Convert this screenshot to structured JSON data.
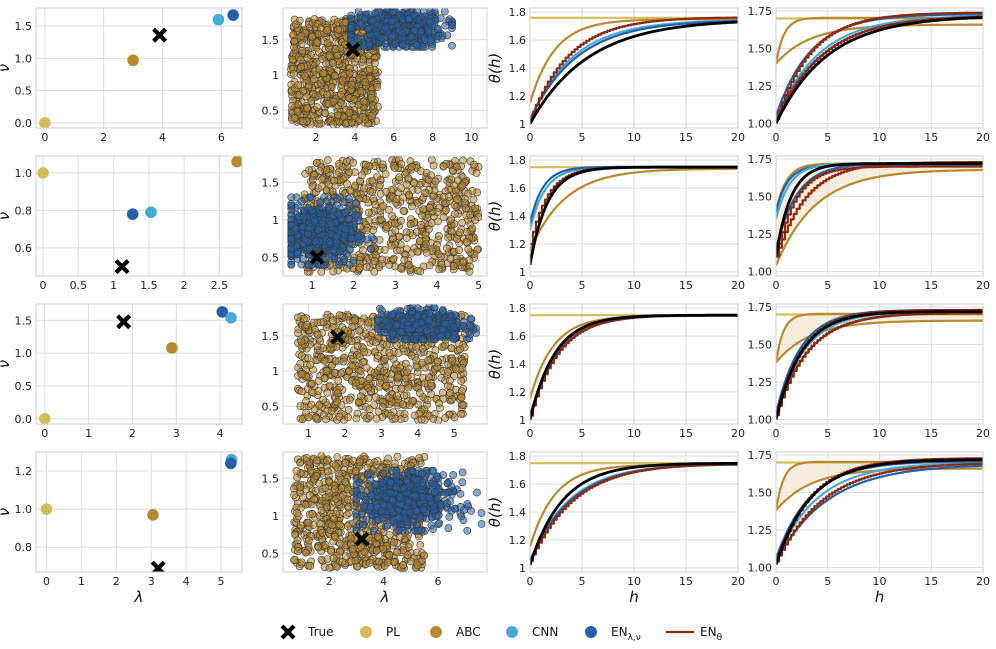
{
  "figure_labels": {
    "nu_label": "ν",
    "lambda_label": "λ",
    "theta_label": "θ(h)",
    "h_label": "h"
  },
  "legend": [
    {
      "key": "true",
      "label": "True",
      "marker": "x-icon",
      "color": "#000000"
    },
    {
      "key": "pl",
      "label": "PL",
      "marker": "circle-icon",
      "color": "#d4bc5c"
    },
    {
      "key": "abc",
      "label": "ABC",
      "marker": "circle-icon",
      "color": "#b8892e"
    },
    {
      "key": "cnn",
      "label": "CNN",
      "marker": "circle-icon",
      "color": "#45aad6"
    },
    {
      "key": "en_lam_nu",
      "label": "EN_{λ,ν}",
      "marker": "circle-icon",
      "color": "#2260a8"
    },
    {
      "key": "en_theta",
      "label": "EN_θ",
      "marker": "line-icon",
      "color": "#8b2a0e"
    }
  ],
  "colors": {
    "true": "#000000",
    "pl": "#d4bc5c",
    "abc": "#b8892e",
    "cnn": "#45aad6",
    "en_lam_nu": "#2260a8",
    "en_theta": "#8b2a0e",
    "band": "#f3e9d6"
  },
  "chart_data": [
    {
      "type": "scatter",
      "row": 1,
      "col": 1,
      "xlim": [
        -0.3,
        6.7
      ],
      "ylim": [
        -0.08,
        1.78
      ],
      "xticks": [
        0,
        2,
        4,
        6
      ],
      "yticks": [
        0.0,
        0.5,
        1.0,
        1.5
      ],
      "ylabel": "ν",
      "points": [
        {
          "series": "pl",
          "x": 0.0,
          "y": 0.0
        },
        {
          "series": "abc",
          "x": 3.0,
          "y": 0.97
        },
        {
          "series": "true",
          "x": 3.9,
          "y": 1.36
        },
        {
          "series": "cnn",
          "x": 5.9,
          "y": 1.6
        },
        {
          "series": "en_lam_nu",
          "x": 6.4,
          "y": 1.67
        }
      ]
    },
    {
      "type": "scatter",
      "row": 1,
      "col": 2,
      "xlim": [
        0.3,
        10.8
      ],
      "ylim": [
        0.25,
        1.95
      ],
      "xticks": [
        2,
        4,
        6,
        8,
        10
      ],
      "yticks": [
        0.5,
        1.0,
        1.5
      ],
      "clouds": [
        {
          "series": "abc",
          "x": [
            0.7,
            5.2
          ],
          "y": [
            0.3,
            1.8
          ],
          "n": 700
        },
        {
          "series": "en_lam_nu",
          "x": [
            3.8,
            9.0
          ],
          "y": [
            1.4,
            1.9
          ],
          "n": 520,
          "mode": "gauss",
          "cx": 6.2,
          "cy": 1.65,
          "sx": 1.2,
          "sy": 0.14
        }
      ],
      "true_point": {
        "x": 3.9,
        "y": 1.36
      }
    },
    {
      "type": "line",
      "row": 1,
      "col": 3,
      "xlim": [
        0,
        20
      ],
      "ylim": [
        0.97,
        1.83
      ],
      "xticks": [
        0,
        5,
        10,
        15,
        20
      ],
      "yticks": [
        1.0,
        1.2,
        1.4,
        1.6,
        1.8
      ],
      "ylabel": "θ(h)",
      "series": [
        {
          "name": "pl",
          "y0": 1.76,
          "yinf": 1.76,
          "k": 1
        },
        {
          "name": "abc",
          "y0": 1.15,
          "yinf": 1.75,
          "k": 0.42
        },
        {
          "name": "cnn",
          "y0": 1.03,
          "yinf": 1.745,
          "k": 0.24
        },
        {
          "name": "en_lam_nu",
          "y0": 1.03,
          "yinf": 1.745,
          "k": 0.22
        },
        {
          "name": "en_theta",
          "y0": 1.03,
          "yinf": 1.765,
          "k": 0.27,
          "step": true
        },
        {
          "name": "true",
          "y0": 1.0,
          "yinf": 1.75,
          "k": 0.18,
          "width": 2.8
        }
      ]
    },
    {
      "type": "line",
      "row": 1,
      "col": 4,
      "xlim": [
        0,
        20
      ],
      "ylim": [
        0.97,
        1.77
      ],
      "xticks": [
        0,
        5,
        10,
        15,
        20
      ],
      "yticks": [
        1.0,
        1.25,
        1.5,
        1.75
      ],
      "band": {
        "upper": {
          "y0": 1.4,
          "yinf": 1.7,
          "k": 1.3
        },
        "lower": {
          "y0": 1.4,
          "yinf": 1.7,
          "k": 1.3
        }
      },
      "series": [
        {
          "name": "pl",
          "y0": 1.7,
          "yinf": 1.7,
          "k": 1,
          "x0": 2.8
        },
        {
          "name": "abc",
          "y0": 1.4,
          "yinf": 1.705,
          "k": 1.3
        },
        {
          "name": "abc",
          "y0": 1.4,
          "yinf": 1.66,
          "k": 0.3
        },
        {
          "name": "cnn",
          "y0": 1.03,
          "yinf": 1.72,
          "k": 0.24
        },
        {
          "name": "en_lam_nu",
          "y0": 1.02,
          "yinf": 1.72,
          "k": 0.22
        },
        {
          "name": "en_lam_nu",
          "y0": 1.05,
          "yinf": 1.73,
          "k": 0.3
        },
        {
          "name": "en_theta",
          "y0": 1.03,
          "yinf": 1.74,
          "k": 0.3,
          "step": true
        },
        {
          "name": "en_theta",
          "y0": 1.03,
          "yinf": 1.72,
          "k": 0.22,
          "step": true
        },
        {
          "name": "true",
          "y0": 1.0,
          "yinf": 1.72,
          "k": 0.2,
          "width": 2.8
        }
      ]
    },
    {
      "type": "scatter",
      "row": 2,
      "col": 1,
      "xlim": [
        -0.1,
        2.82
      ],
      "ylim": [
        0.45,
        1.09
      ],
      "xticks": [
        0.0,
        0.5,
        1.0,
        1.5,
        2.0,
        2.5
      ],
      "yticks": [
        0.6,
        0.8,
        1.0
      ],
      "ylabel": "ν",
      "points": [
        {
          "series": "pl",
          "x": 0.0,
          "y": 1.0
        },
        {
          "series": "abc",
          "x": 2.75,
          "y": 1.06
        },
        {
          "series": "en_lam_nu",
          "x": 1.27,
          "y": 0.78
        },
        {
          "series": "cnn",
          "x": 1.53,
          "y": 0.79
        },
        {
          "series": "true",
          "x": 1.12,
          "y": 0.5
        }
      ]
    },
    {
      "type": "scatter",
      "row": 2,
      "col": 2,
      "xlim": [
        0.3,
        5.2
      ],
      "ylim": [
        0.25,
        1.85
      ],
      "xticks": [
        1,
        2,
        3,
        4,
        5
      ],
      "yticks": [
        0.5,
        1.0,
        1.5
      ],
      "clouds": [
        {
          "series": "abc",
          "x": [
            0.8,
            5.0
          ],
          "y": [
            0.3,
            1.8
          ],
          "n": 700
        },
        {
          "series": "en_lam_nu",
          "x": [
            0.5,
            3.0
          ],
          "y": [
            0.4,
            1.3
          ],
          "n": 560,
          "mode": "gauss",
          "cx": 1.15,
          "cy": 0.82,
          "sx": 0.45,
          "sy": 0.2
        }
      ],
      "true_point": {
        "x": 1.12,
        "y": 0.5
      }
    },
    {
      "type": "line",
      "row": 2,
      "col": 3,
      "xlim": [
        0,
        20
      ],
      "ylim": [
        0.97,
        1.83
      ],
      "xticks": [
        0,
        5,
        10,
        15,
        20
      ],
      "yticks": [
        1.0,
        1.2,
        1.4,
        1.6,
        1.8
      ],
      "ylabel": "θ(h)",
      "series": [
        {
          "name": "pl",
          "y0": 1.75,
          "yinf": 1.75,
          "k": 1
        },
        {
          "name": "abc",
          "y0": 1.15,
          "yinf": 1.74,
          "k": 0.3
        },
        {
          "name": "cnn",
          "y0": 1.3,
          "yinf": 1.75,
          "k": 0.7
        },
        {
          "name": "en_lam_nu",
          "y0": 1.35,
          "yinf": 1.752,
          "k": 0.8
        },
        {
          "name": "en_theta",
          "y0": 1.2,
          "yinf": 1.752,
          "k": 0.6,
          "step": true
        },
        {
          "name": "true",
          "y0": 1.05,
          "yinf": 1.75,
          "k": 0.6,
          "width": 2.8
        }
      ]
    },
    {
      "type": "line",
      "row": 2,
      "col": 4,
      "xlim": [
        0,
        20
      ],
      "ylim": [
        0.97,
        1.77
      ],
      "xticks": [
        0,
        5,
        10,
        15,
        20
      ],
      "yticks": [
        1.0,
        1.25,
        1.5,
        1.75
      ],
      "band": {
        "upper": {
          "y0": 1.4,
          "yinf": 1.72,
          "k": 1.0
        },
        "lower": {
          "y0": 1.04,
          "yinf": 1.68,
          "k": 0.26
        }
      },
      "series": [
        {
          "name": "abc",
          "y0": 1.04,
          "yinf": 1.68,
          "k": 0.26
        },
        {
          "name": "abc",
          "y0": 1.4,
          "yinf": 1.72,
          "k": 1.0
        },
        {
          "name": "en_lam_nu",
          "y0": 1.15,
          "yinf": 1.72,
          "k": 0.5
        },
        {
          "name": "en_lam_nu",
          "y0": 1.4,
          "yinf": 1.71,
          "k": 0.9
        },
        {
          "name": "cnn",
          "y0": 1.35,
          "yinf": 1.72,
          "k": 0.75
        },
        {
          "name": "en_theta",
          "y0": 1.1,
          "yinf": 1.73,
          "k": 0.35,
          "step": true
        },
        {
          "name": "en_theta",
          "y0": 1.1,
          "yinf": 1.7,
          "k": 0.55,
          "step": true
        },
        {
          "name": "true",
          "y0": 1.1,
          "yinf": 1.72,
          "k": 0.7,
          "width": 2.8
        }
      ]
    },
    {
      "type": "scatter",
      "row": 3,
      "col": 1,
      "xlim": [
        -0.2,
        4.5
      ],
      "ylim": [
        -0.08,
        1.75
      ],
      "xticks": [
        0,
        1,
        2,
        3,
        4
      ],
      "yticks": [
        0.0,
        0.5,
        1.0,
        1.5
      ],
      "ylabel": "ν",
      "points": [
        {
          "series": "pl",
          "x": 0.0,
          "y": 0.0
        },
        {
          "series": "abc",
          "x": 2.9,
          "y": 1.08
        },
        {
          "series": "true",
          "x": 1.8,
          "y": 1.48
        },
        {
          "series": "en_lam_nu",
          "x": 4.05,
          "y": 1.63
        },
        {
          "series": "cnn",
          "x": 4.25,
          "y": 1.54
        }
      ]
    },
    {
      "type": "scatter",
      "row": 3,
      "col": 2,
      "xlim": [
        0.3,
        5.9
      ],
      "ylim": [
        0.25,
        1.95
      ],
      "xticks": [
        1,
        2,
        3,
        4,
        5
      ],
      "yticks": [
        0.5,
        1.0,
        1.5
      ],
      "clouds": [
        {
          "series": "abc",
          "x": [
            0.7,
            5.3
          ],
          "y": [
            0.3,
            1.8
          ],
          "n": 700
        },
        {
          "series": "en_lam_nu",
          "x": [
            2.9,
            5.6
          ],
          "y": [
            1.45,
            1.9
          ],
          "n": 520,
          "mode": "gauss",
          "cx": 4.1,
          "cy": 1.65,
          "sx": 0.55,
          "sy": 0.11
        }
      ],
      "true_point": {
        "x": 1.8,
        "y": 1.48
      }
    },
    {
      "type": "line",
      "row": 3,
      "col": 3,
      "xlim": [
        0,
        20
      ],
      "ylim": [
        0.97,
        1.83
      ],
      "xticks": [
        0,
        5,
        10,
        15,
        20
      ],
      "yticks": [
        1.0,
        1.2,
        1.4,
        1.6,
        1.8
      ],
      "ylabel": "θ(h)",
      "series": [
        {
          "name": "pl",
          "y0": 1.75,
          "yinf": 1.75,
          "k": 1
        },
        {
          "name": "abc",
          "y0": 1.15,
          "yinf": 1.745,
          "k": 0.45
        },
        {
          "name": "cnn",
          "y0": 1.03,
          "yinf": 1.75,
          "k": 0.38
        },
        {
          "name": "en_lam_nu",
          "y0": 1.03,
          "yinf": 1.75,
          "k": 0.36
        },
        {
          "name": "en_theta",
          "y0": 1.03,
          "yinf": 1.752,
          "k": 0.37,
          "step": true
        },
        {
          "name": "true",
          "y0": 1.0,
          "yinf": 1.75,
          "k": 0.42,
          "width": 2.8
        }
      ]
    },
    {
      "type": "line",
      "row": 3,
      "col": 4,
      "xlim": [
        0,
        20
      ],
      "ylim": [
        0.97,
        1.77
      ],
      "xticks": [
        0,
        5,
        10,
        15,
        20
      ],
      "yticks": [
        1.0,
        1.25,
        1.5,
        1.75
      ],
      "band": {
        "upper": {
          "y0": 1.38,
          "yinf": 1.7,
          "k": 1.4
        },
        "lower": {
          "y0": 1.38,
          "yinf": 1.66,
          "k": 0.3
        }
      },
      "series": [
        {
          "name": "pl",
          "y0": 1.7,
          "yinf": 1.7,
          "k": 1,
          "x0": 2.8
        },
        {
          "name": "abc",
          "y0": 1.38,
          "yinf": 1.705,
          "k": 1.4
        },
        {
          "name": "abc",
          "y0": 1.38,
          "yinf": 1.66,
          "k": 0.3
        },
        {
          "name": "cnn",
          "y0": 1.03,
          "yinf": 1.72,
          "k": 0.36
        },
        {
          "name": "en_lam_nu",
          "y0": 1.02,
          "yinf": 1.71,
          "k": 0.32
        },
        {
          "name": "en_lam_nu",
          "y0": 1.04,
          "yinf": 1.73,
          "k": 0.42
        },
        {
          "name": "en_theta",
          "y0": 1.03,
          "yinf": 1.73,
          "k": 0.4,
          "step": true
        },
        {
          "name": "en_theta",
          "y0": 1.03,
          "yinf": 1.71,
          "k": 0.33,
          "step": true
        },
        {
          "name": "true",
          "y0": 1.0,
          "yinf": 1.72,
          "k": 0.4,
          "width": 2.8
        }
      ]
    },
    {
      "type": "scatter",
      "row": 4,
      "col": 1,
      "xlim": [
        -0.3,
        5.6
      ],
      "ylim": [
        0.67,
        1.3
      ],
      "xticks": [
        0,
        1,
        2,
        3,
        4,
        5
      ],
      "yticks": [
        0.8,
        1.0,
        1.2
      ],
      "ylabel": "ν",
      "xlabel": "λ",
      "points": [
        {
          "series": "pl",
          "x": 0.0,
          "y": 1.0
        },
        {
          "series": "abc",
          "x": 3.05,
          "y": 0.97
        },
        {
          "series": "true",
          "x": 3.2,
          "y": 0.69
        },
        {
          "series": "cnn",
          "x": 5.3,
          "y": 1.26
        },
        {
          "series": "en_lam_nu",
          "x": 5.28,
          "y": 1.24
        }
      ]
    },
    {
      "type": "scatter",
      "row": 4,
      "col": 2,
      "xlim": [
        0.3,
        7.8
      ],
      "ylim": [
        0.25,
        1.85
      ],
      "xticks": [
        2,
        4,
        6
      ],
      "yticks": [
        0.5,
        1.0,
        1.5
      ],
      "xlabel": "λ",
      "clouds": [
        {
          "series": "abc",
          "x": [
            0.7,
            5.5
          ],
          "y": [
            0.3,
            1.8
          ],
          "n": 700
        },
        {
          "series": "en_lam_nu",
          "x": [
            3.0,
            7.6
          ],
          "y": [
            0.8,
            1.6
          ],
          "n": 560,
          "mode": "gauss",
          "cx": 4.9,
          "cy": 1.2,
          "sx": 0.85,
          "sy": 0.18
        }
      ],
      "true_point": {
        "x": 3.2,
        "y": 0.69
      }
    },
    {
      "type": "line",
      "row": 4,
      "col": 3,
      "xlim": [
        0,
        20
      ],
      "ylim": [
        0.97,
        1.83
      ],
      "xticks": [
        0,
        5,
        10,
        15,
        20
      ],
      "yticks": [
        1.0,
        1.2,
        1.4,
        1.6,
        1.8
      ],
      "ylabel": "θ(h)",
      "xlabel": "h",
      "series": [
        {
          "name": "pl",
          "y0": 1.75,
          "yinf": 1.75,
          "k": 1
        },
        {
          "name": "abc",
          "y0": 1.15,
          "yinf": 1.74,
          "k": 0.42
        },
        {
          "name": "cnn",
          "y0": 1.05,
          "yinf": 1.745,
          "k": 0.26
        },
        {
          "name": "en_lam_nu",
          "y0": 1.05,
          "yinf": 1.745,
          "k": 0.25
        },
        {
          "name": "en_theta",
          "y0": 1.05,
          "yinf": 1.75,
          "k": 0.24,
          "step": true
        },
        {
          "name": "true",
          "y0": 1.02,
          "yinf": 1.75,
          "k": 0.32,
          "width": 2.8
        }
      ]
    },
    {
      "type": "line",
      "row": 4,
      "col": 4,
      "xlim": [
        0,
        20
      ],
      "ylim": [
        0.97,
        1.77
      ],
      "xticks": [
        0,
        5,
        10,
        15,
        20
      ],
      "yticks": [
        1.0,
        1.25,
        1.5,
        1.75
      ],
      "xlabel": "h",
      "band": {
        "upper": {
          "y0": 1.38,
          "yinf": 1.7,
          "k": 1.4
        },
        "lower": {
          "y0": 1.38,
          "yinf": 1.66,
          "k": 0.3
        }
      },
      "series": [
        {
          "name": "pl",
          "y0": 1.7,
          "yinf": 1.7,
          "k": 1,
          "x0": 2.8
        },
        {
          "name": "abc",
          "y0": 1.38,
          "yinf": 1.705,
          "k": 1.4
        },
        {
          "name": "abc",
          "y0": 1.38,
          "yinf": 1.66,
          "k": 0.3
        },
        {
          "name": "cnn",
          "y0": 1.05,
          "yinf": 1.7,
          "k": 0.25
        },
        {
          "name": "en_lam_nu",
          "y0": 1.04,
          "yinf": 1.69,
          "k": 0.2
        },
        {
          "name": "en_lam_nu",
          "y0": 1.06,
          "yinf": 1.71,
          "k": 0.3
        },
        {
          "name": "en_theta",
          "y0": 1.04,
          "yinf": 1.73,
          "k": 0.3,
          "step": true
        },
        {
          "name": "en_theta",
          "y0": 1.04,
          "yinf": 1.7,
          "k": 0.22,
          "step": true
        },
        {
          "name": "true",
          "y0": 1.02,
          "yinf": 1.72,
          "k": 0.3,
          "width": 2.8
        }
      ]
    }
  ]
}
